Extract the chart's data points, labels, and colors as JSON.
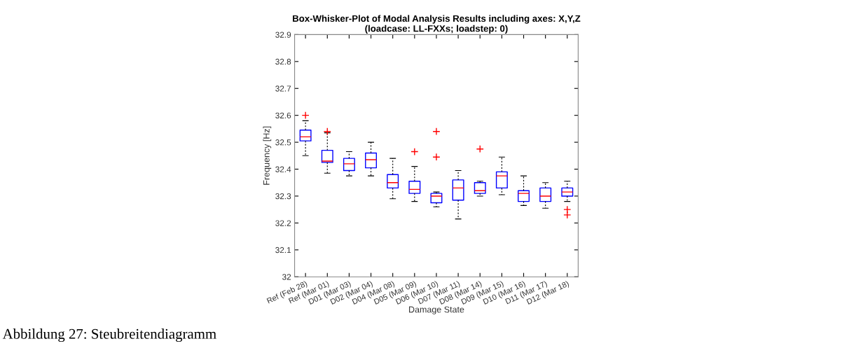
{
  "chart_data": {
    "type": "box",
    "title": "Box-Whisker-Plot of Modal Analysis Results including axes: X,Y,Z\n(loadcase: LL-FXXs; loadstep: 0)",
    "xlabel": "Damage State",
    "ylabel": "Frequency [Hz]",
    "categories": [
      "Ref (Feb 28)",
      "Ref (Mar 01)",
      "D01 (Mar 03)",
      "D02 (Mar 04)",
      "D04 (Mar 08)",
      "D05 (Mar 09)",
      "D06 (Mar 10)",
      "D07 (Mar 11)",
      "D08 (Mar 14)",
      "D09 (Mar 15)",
      "D10 (Mar 16)",
      "D11 (Mar 17)",
      "D12 (Mar 18)"
    ],
    "boxes": [
      {
        "low": 32.45,
        "q1": 32.505,
        "median": 32.52,
        "q3": 32.545,
        "high": 32.58,
        "outliers": [
          32.6
        ]
      },
      {
        "low": 32.385,
        "q1": 32.425,
        "median": 32.43,
        "q3": 32.47,
        "high": 32.535,
        "outliers": [
          32.54
        ]
      },
      {
        "low": 32.375,
        "q1": 32.395,
        "median": 32.42,
        "q3": 32.44,
        "high": 32.465
      },
      {
        "low": 32.375,
        "q1": 32.405,
        "median": 32.435,
        "q3": 32.46,
        "high": 32.5
      },
      {
        "low": 32.29,
        "q1": 32.33,
        "median": 32.35,
        "q3": 32.38,
        "high": 32.44
      },
      {
        "low": 32.28,
        "q1": 32.31,
        "median": 32.325,
        "q3": 32.355,
        "high": 32.41,
        "outliers": [
          32.465
        ]
      },
      {
        "low": 32.26,
        "q1": 32.275,
        "median": 32.3,
        "q3": 32.31,
        "high": 32.315,
        "outliers": [
          32.54,
          32.445
        ]
      },
      {
        "low": 32.215,
        "q1": 32.285,
        "median": 32.33,
        "q3": 32.36,
        "high": 32.395
      },
      {
        "low": 32.3,
        "q1": 32.31,
        "median": 32.32,
        "q3": 32.35,
        "high": 32.355,
        "outliers": [
          32.475
        ]
      },
      {
        "low": 32.305,
        "q1": 32.33,
        "median": 32.375,
        "q3": 32.39,
        "high": 32.445
      },
      {
        "low": 32.265,
        "q1": 32.28,
        "median": 32.31,
        "q3": 32.32,
        "high": 32.375
      },
      {
        "low": 32.255,
        "q1": 32.28,
        "median": 32.3,
        "q3": 32.33,
        "high": 32.35
      },
      {
        "low": 32.28,
        "q1": 32.3,
        "median": 32.315,
        "q3": 32.33,
        "high": 32.355,
        "outliers": [
          32.25,
          32.23
        ]
      }
    ],
    "color": "#0000ff",
    "ylim": [
      32,
      32.9
    ],
    "yticks": [
      32,
      32.1,
      32.2,
      32.3,
      32.4,
      32.5,
      32.6,
      32.7,
      32.8,
      32.9
    ],
    "grid": false,
    "annotations": [
      "Abbildung 27: Steubreitendiagramm"
    ]
  }
}
